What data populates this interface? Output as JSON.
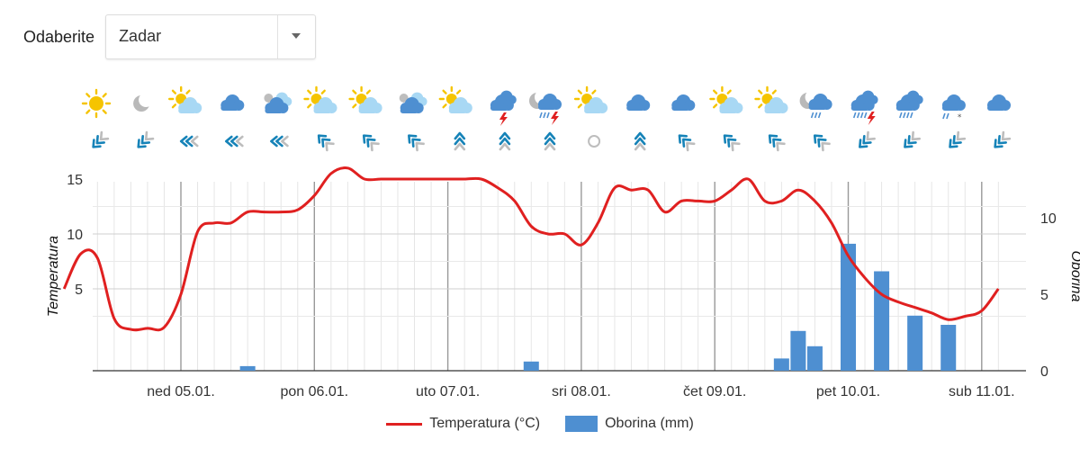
{
  "selector": {
    "label": "Odaberite",
    "value": "Zadar"
  },
  "legend": {
    "temp_label": "Temperatura (°C)",
    "precip_label": "Oborina (mm)"
  },
  "colors": {
    "temp_line": "#e02020",
    "precip_bar": "#4e8fd1",
    "sun": "#f5c400",
    "cloud_light": "#a8d8f4",
    "cloud_dark": "#4e8fd1",
    "arrow_blue": "#1683b8",
    "arrow_gray": "#bdbdbd"
  },
  "forecast": {
    "weather_icons": [
      "sun",
      "moon-partly",
      "sun-partly-cloud",
      "cloud",
      "cloud-double",
      "sun-partly-cloud",
      "sun-partly-cloud",
      "cloud-double",
      "sun-partly-cloud",
      "storm",
      "storm-rain",
      "sun-partly-cloud",
      "cloud",
      "cloud",
      "sun-partly-cloud",
      "sun-partly-cloud",
      "moon-rain",
      "storm-heavy",
      "rain-heavy",
      "snow-rain",
      "cloud"
    ],
    "wind_icons": [
      "wind-sw",
      "wind-sw",
      "wind-w",
      "wind-w",
      "wind-w",
      "wind-nw",
      "wind-nw",
      "wind-nw",
      "wind-n",
      "wind-n",
      "wind-n",
      "calm",
      "wind-n",
      "wind-nw",
      "wind-nw",
      "wind-nw",
      "wind-nw",
      "wind-sw",
      "wind-sw",
      "wind-sw",
      "wind-sw"
    ]
  },
  "chart_data": {
    "type": "line",
    "x_tick_labels": [
      "ned 05.01.",
      "pon 06.01.",
      "uto 07.01.",
      "sri 08.01.",
      "čet 09.01.",
      "pet 10.01.",
      "sub 11.01."
    ],
    "y_left": {
      "label": "Temperatura",
      "ticks": [
        5,
        10,
        15
      ]
    },
    "y_right": {
      "label": "Oborina",
      "ticks": [
        0,
        5,
        10
      ]
    },
    "grid": true,
    "legend_position": "bottom-center",
    "temperature_series": {
      "name": "Temperatura (°C)",
      "hours": [
        0,
        3,
        6,
        9,
        12,
        15,
        18,
        21,
        24,
        27,
        30,
        33,
        36,
        39,
        42,
        45,
        48,
        51,
        54,
        57,
        60,
        63,
        66,
        69,
        72,
        75,
        78,
        81,
        84,
        87,
        90,
        93,
        96,
        99,
        102,
        105,
        108,
        111,
        114,
        117,
        120,
        123,
        126,
        129,
        132,
        135,
        138,
        141,
        144,
        147,
        150,
        153,
        156,
        159,
        162,
        165,
        168
      ],
      "values": [
        5.0,
        8.2,
        7.8,
        2.3,
        1.3,
        1.4,
        1.5,
        4.5,
        10.2,
        11.0,
        11.0,
        12.0,
        12.0,
        12.0,
        12.2,
        13.5,
        15.5,
        16.0,
        15.0,
        15.0,
        15.0,
        15.0,
        15.0,
        15.0,
        15.0,
        15.0,
        14.2,
        13.0,
        10.7,
        10.0,
        10.0,
        9.0,
        11.0,
        14.2,
        14.0,
        14.0,
        12.0,
        13.0,
        13.0,
        13.0,
        14.0,
        15.0,
        13.0,
        13.0,
        14.0,
        13.0,
        11.0,
        8.0,
        6.0,
        4.5,
        3.8,
        3.3,
        2.8,
        2.2,
        2.5,
        3.0,
        5.0
      ]
    },
    "precipitation_series": {
      "name": "Oborina (mm)",
      "bars": [
        {
          "hour": 33,
          "value": 0.3
        },
        {
          "hour": 84,
          "value": 0.6
        },
        {
          "hour": 129,
          "value": 0.8
        },
        {
          "hour": 132,
          "value": 2.6
        },
        {
          "hour": 135,
          "value": 1.6
        },
        {
          "hour": 141,
          "value": 8.3
        },
        {
          "hour": 147,
          "value": 6.5
        },
        {
          "hour": 153,
          "value": 3.6
        },
        {
          "hour": 159,
          "value": 3.0
        }
      ]
    }
  }
}
